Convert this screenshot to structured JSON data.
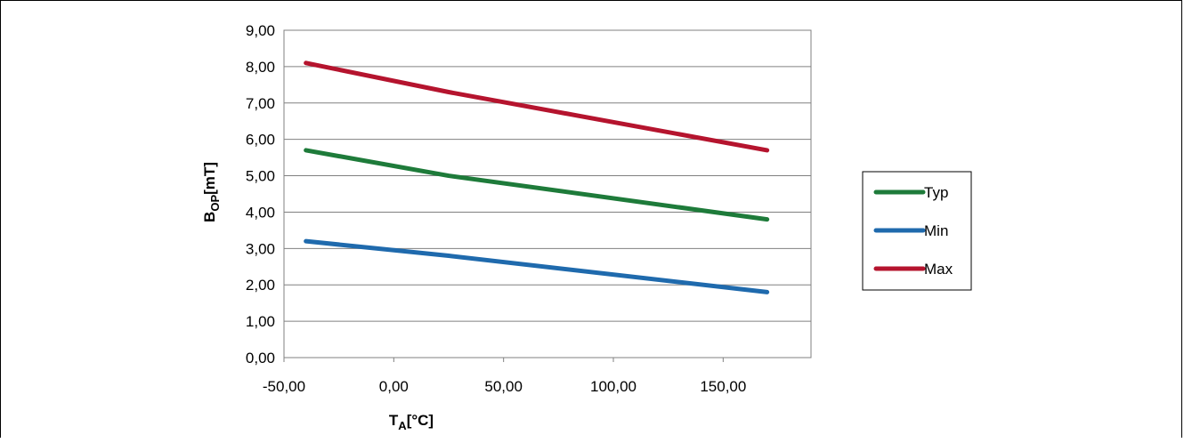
{
  "chart_data": {
    "type": "line",
    "x": [
      -40,
      25,
      170
    ],
    "series": [
      {
        "name": "Typ",
        "values": [
          5.7,
          5.0,
          3.8
        ],
        "color": "#1e7b3a"
      },
      {
        "name": "Min",
        "values": [
          3.2,
          2.8,
          1.8
        ],
        "color": "#1f6aad"
      },
      {
        "name": "Max",
        "values": [
          8.1,
          7.3,
          5.7
        ],
        "color": "#b5142e"
      }
    ],
    "xlim": [
      -50,
      190
    ],
    "ylim": [
      0,
      9
    ],
    "x_ticks": [
      "-50,00",
      "0,00",
      "50,00",
      "100,00",
      "150,00"
    ],
    "y_ticks": [
      "0,00",
      "1,00",
      "2,00",
      "3,00",
      "4,00",
      "5,00",
      "6,00",
      "7,00",
      "8,00",
      "9,00"
    ],
    "xlabel": {
      "main": "T",
      "sub": "A",
      "unit": "[°C]"
    },
    "ylabel": {
      "main": "B",
      "sub": "OP",
      "unit": "[mT]"
    },
    "grid": "horizontal",
    "legend_position": "right"
  }
}
